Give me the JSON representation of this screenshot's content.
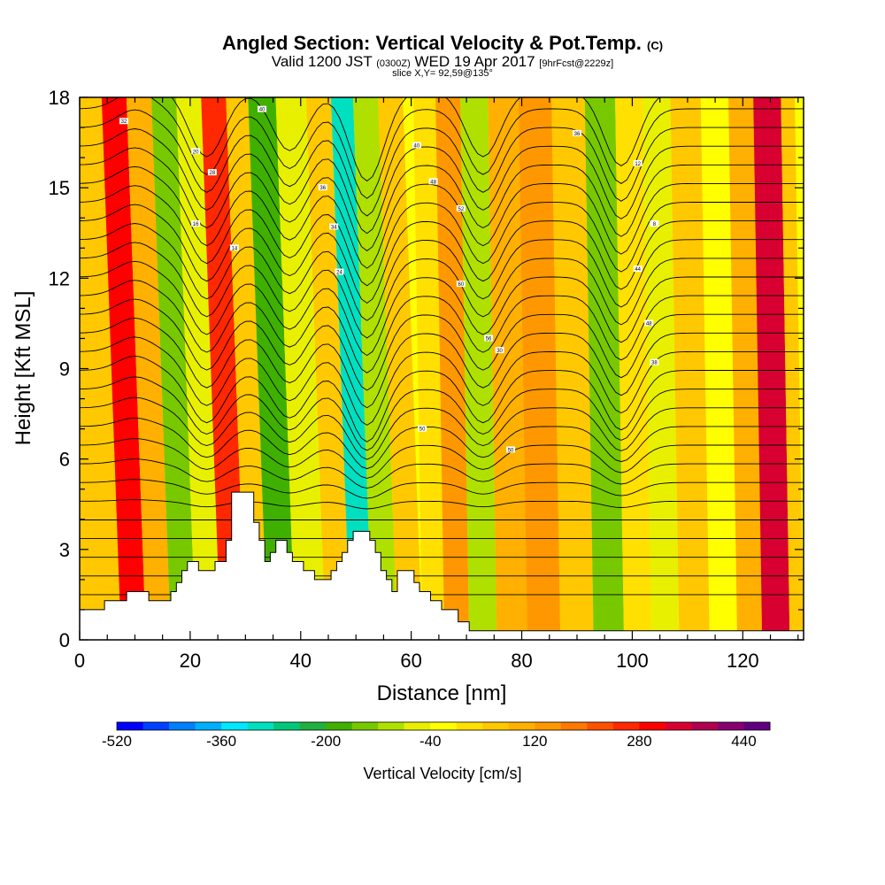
{
  "header": {
    "title_main": "Angled Section: Vertical Velocity & Pot.Temp.",
    "title_tag": "(C)",
    "valid_prefix": "Valid 1200 JST",
    "valid_z": "(0300Z)",
    "valid_date": "WED 19 Apr 2017",
    "forecast": "[9hrFcst@2229z]",
    "slice": "slice X,Y= 92,59@135°"
  },
  "chart_data": {
    "type": "heatmap",
    "title": "Angled Section: Vertical Velocity & Pot.Temp.",
    "xlabel": "Distance [nm]",
    "ylabel": "Height [Kft MSL]",
    "xlim": [
      0,
      131
    ],
    "ylim": [
      0,
      18
    ],
    "x_ticks": [
      0,
      20,
      40,
      60,
      80,
      100,
      120
    ],
    "y_ticks": [
      0,
      3,
      6,
      9,
      12,
      15,
      18
    ],
    "colorbar": {
      "label": "Vertical Velocity [cm/s]",
      "min": -520,
      "max": 480,
      "step": 40,
      "tick_values": [
        -520,
        -360,
        -200,
        -40,
        120,
        280,
        440
      ],
      "colors": [
        "#0000ff",
        "#0040ff",
        "#0080ff",
        "#00b0ff",
        "#00e8ff",
        "#00e0c0",
        "#00c878",
        "#20b040",
        "#40b000",
        "#78c800",
        "#b0e000",
        "#e8f000",
        "#ffff00",
        "#ffe000",
        "#ffc800",
        "#ffb000",
        "#ff9800",
        "#ff7800",
        "#ff5000",
        "#ff2800",
        "#ff0000",
        "#d80030",
        "#b00050",
        "#880070",
        "#600080"
      ]
    },
    "velocity_bands": [
      {
        "x": 5,
        "value": 40
      },
      {
        "x": 10,
        "value": 280
      },
      {
        "x": 14,
        "value": 80
      },
      {
        "x": 19,
        "value": -160
      },
      {
        "x": 23,
        "value": -80
      },
      {
        "x": 28,
        "value": 240
      },
      {
        "x": 32,
        "value": 40
      },
      {
        "x": 36,
        "value": -200
      },
      {
        "x": 42,
        "value": -80
      },
      {
        "x": 47,
        "value": 40
      },
      {
        "x": 51,
        "value": -320
      },
      {
        "x": 55,
        "value": -120
      },
      {
        "x": 60,
        "value": 40
      },
      {
        "x": 64,
        "value": 0
      },
      {
        "x": 68,
        "value": 120
      },
      {
        "x": 73,
        "value": -120
      },
      {
        "x": 78,
        "value": 80
      },
      {
        "x": 84,
        "value": 120
      },
      {
        "x": 90,
        "value": 40
      },
      {
        "x": 96,
        "value": -160
      },
      {
        "x": 101,
        "value": 0
      },
      {
        "x": 106,
        "value": -80
      },
      {
        "x": 111,
        "value": 40
      },
      {
        "x": 117,
        "value": -40
      },
      {
        "x": 121,
        "value": 80
      },
      {
        "x": 126,
        "value": 320
      },
      {
        "x": 131,
        "value": 40
      }
    ],
    "contour_labels": [
      "32",
      "20",
      "28",
      "16",
      "14",
      "36",
      "34",
      "24",
      "40",
      "48",
      "52",
      "60",
      "56",
      "30",
      "36",
      "12",
      "8",
      "44",
      "48",
      "38",
      "40",
      "50",
      "50"
    ],
    "terrain_kft": [
      [
        0,
        1.0
      ],
      [
        4.5,
        1.0
      ],
      [
        4.5,
        1.3
      ],
      [
        8.5,
        1.3
      ],
      [
        8.5,
        1.6
      ],
      [
        12.5,
        1.6
      ],
      [
        12.5,
        1.3
      ],
      [
        16.5,
        1.3
      ],
      [
        16.5,
        1.6
      ],
      [
        17.5,
        1.6
      ],
      [
        17.5,
        1.9
      ],
      [
        18.5,
        1.9
      ],
      [
        18.5,
        2.3
      ],
      [
        19.5,
        2.3
      ],
      [
        19.5,
        2.6
      ],
      [
        21.5,
        2.6
      ],
      [
        21.5,
        2.3
      ],
      [
        24.5,
        2.3
      ],
      [
        24.5,
        2.6
      ],
      [
        26.5,
        2.6
      ],
      [
        26.5,
        3.3
      ],
      [
        27.5,
        3.3
      ],
      [
        27.5,
        4.9
      ],
      [
        31.5,
        4.9
      ],
      [
        31.5,
        3.9
      ],
      [
        32.5,
        3.9
      ],
      [
        32.5,
        3.3
      ],
      [
        33.5,
        3.3
      ],
      [
        33.5,
        2.6
      ],
      [
        34.5,
        2.6
      ],
      [
        34.5,
        2.9
      ],
      [
        35.5,
        2.9
      ],
      [
        35.5,
        3.3
      ],
      [
        37.5,
        3.3
      ],
      [
        37.5,
        2.9
      ],
      [
        38.5,
        2.9
      ],
      [
        38.5,
        2.6
      ],
      [
        40.5,
        2.6
      ],
      [
        40.5,
        2.3
      ],
      [
        42.5,
        2.3
      ],
      [
        42.5,
        2.0
      ],
      [
        45.5,
        2.0
      ],
      [
        45.5,
        2.3
      ],
      [
        46.5,
        2.3
      ],
      [
        46.5,
        2.6
      ],
      [
        47.5,
        2.6
      ],
      [
        47.5,
        2.9
      ],
      [
        48.5,
        2.9
      ],
      [
        48.5,
        3.3
      ],
      [
        49.5,
        3.3
      ],
      [
        49.5,
        3.6
      ],
      [
        52.5,
        3.6
      ],
      [
        52.5,
        3.3
      ],
      [
        53.5,
        3.3
      ],
      [
        53.5,
        2.9
      ],
      [
        54.5,
        2.9
      ],
      [
        54.5,
        2.3
      ],
      [
        55.5,
        2.3
      ],
      [
        55.5,
        2.0
      ],
      [
        56.5,
        2.0
      ],
      [
        56.5,
        1.6
      ],
      [
        57.5,
        1.6
      ],
      [
        57.5,
        2.3
      ],
      [
        60.5,
        2.3
      ],
      [
        60.5,
        1.9
      ],
      [
        61.5,
        1.9
      ],
      [
        61.5,
        1.6
      ],
      [
        63.5,
        1.6
      ],
      [
        63.5,
        1.3
      ],
      [
        65.5,
        1.3
      ],
      [
        65.5,
        1.0
      ],
      [
        68.5,
        1.0
      ],
      [
        68.5,
        0.6
      ],
      [
        70.5,
        0.6
      ],
      [
        70.5,
        0.3
      ],
      [
        131,
        0.3
      ]
    ]
  }
}
